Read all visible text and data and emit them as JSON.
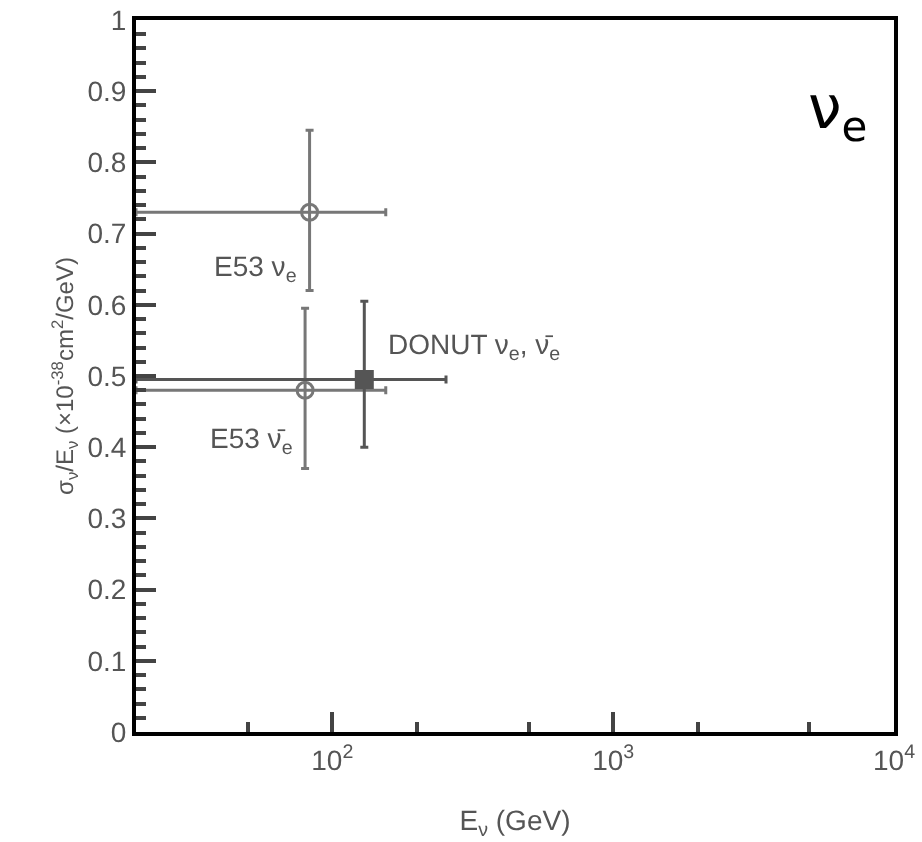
{
  "chart_data": {
    "type": "scatter",
    "xlabel": "E$_{ν}$ (GeV)",
    "ylabel": "σ$_{ν}$/E$_{ν}$ (×10$^{-38}$cm$^{2}$/GeV)",
    "log": "x",
    "xlim": [
      20,
      10000
    ],
    "xticks": [
      {
        "value": 100,
        "label": "10$^{2}$"
      },
      {
        "value": 1000,
        "label": "10$^{3}$"
      },
      {
        "value": 10000,
        "label": "10$^{4}$"
      }
    ],
    "ylim": [
      0,
      1
    ],
    "yticks": [
      0,
      0.1,
      0.2,
      0.3,
      0.4,
      0.5,
      0.6,
      0.7,
      0.8,
      0.9,
      1
    ],
    "grid": false,
    "series": [
      {
        "marker": "circle",
        "color": "#777777",
        "x": [
          83
        ],
        "values": [
          0.73
        ],
        "errors": [
          [
            0.62,
            0.845
          ]
        ],
        "xerrors": [
          [
            20,
            155
          ]
        ]
      },
      {
        "marker": "circle",
        "color": "#777777",
        "x": [
          80
        ],
        "values": [
          0.48
        ],
        "errors": [
          [
            0.37,
            0.595
          ]
        ],
        "xerrors": [
          [
            20,
            155
          ]
        ]
      },
      {
        "marker": "square",
        "color": "#555555",
        "x": [
          130
        ],
        "values": [
          0.495
        ],
        "errors": [
          [
            0.4,
            0.605
          ]
        ],
        "xerrors": [
          [
            20,
            254
          ]
        ]
      }
    ],
    "annotations": [
      {
        "text": "E53 ν$_{e}$",
        "x": 83,
        "y": 0.65
      },
      {
        "text": "E53 ν̄$_{e}$",
        "x": 80,
        "y": 0.41
      },
      {
        "text": "DONUT ν$_{e}$, ν̄$_{e}$",
        "x": 130,
        "y": 0.54
      },
      "ν$_{e}$"
    ]
  }
}
